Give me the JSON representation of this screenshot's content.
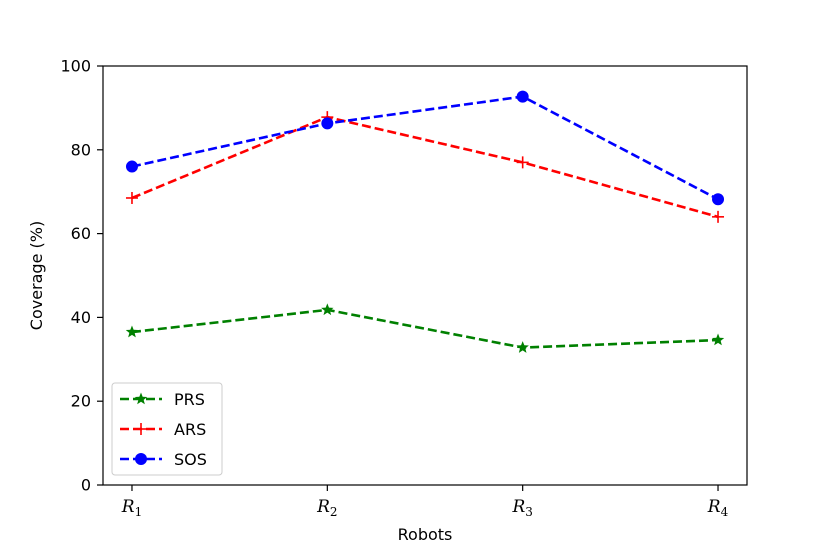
{
  "chart_data": {
    "type": "line",
    "title": "",
    "xlabel": "Robots",
    "ylabel": "Coverage (%)",
    "categories": [
      {
        "base": "R",
        "sub": "1"
      },
      {
        "base": "R",
        "sub": "2"
      },
      {
        "base": "R",
        "sub": "3"
      },
      {
        "base": "R",
        "sub": "4"
      }
    ],
    "ylim": [
      0,
      100
    ],
    "yticks": [
      0,
      20,
      40,
      60,
      80,
      100
    ],
    "grid": false,
    "legend_position": "lower-left",
    "series": [
      {
        "name": "PRS",
        "values": [
          36.5,
          41.8,
          32.8,
          34.6
        ],
        "color": "#008000",
        "marker": "star",
        "linestyle": "dashed"
      },
      {
        "name": "ARS",
        "values": [
          68.5,
          87.8,
          77.0,
          64.0
        ],
        "color": "#ff0000",
        "marker": "plus",
        "linestyle": "dashed"
      },
      {
        "name": "SOS",
        "values": [
          76.0,
          86.3,
          92.7,
          68.2
        ],
        "color": "#0000ff",
        "marker": "circle",
        "linestyle": "dashed"
      }
    ]
  }
}
